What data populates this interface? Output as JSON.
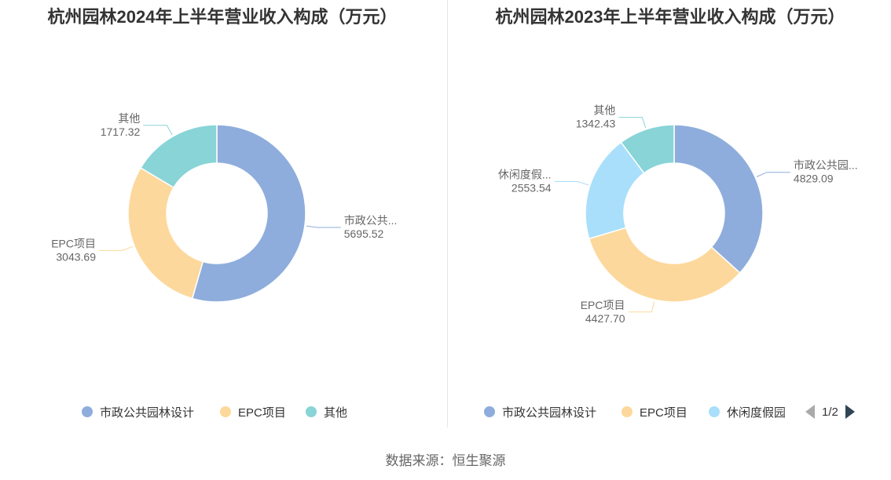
{
  "charts": [
    {
      "title": "杭州园林2024年上半年营业收入构成（万元）",
      "chart_data": {
        "type": "pie",
        "title": "杭州园林2024年上半年营业收入构成（万元）",
        "categories": [
          "市政公共园林设计",
          "EPC项目",
          "其他"
        ],
        "short_labels": [
          "市政公共...",
          "EPC项目",
          "其他"
        ],
        "values": [
          5695.52,
          3043.69,
          1717.32
        ],
        "value_labels": [
          "5695.52",
          "3043.69",
          "1717.32"
        ],
        "colors": [
          "#8eaddc",
          "#fdd89c",
          "#88d4d7"
        ],
        "legend": "bottom"
      }
    },
    {
      "title": "杭州园林2023年上半年营业收入构成（万元）",
      "chart_data": {
        "type": "pie",
        "title": "杭州园林2023年上半年营业收入构成（万元）",
        "categories": [
          "市政公共园林设计",
          "EPC项目",
          "休闲度假园",
          "其他"
        ],
        "short_labels": [
          "市政公共园...",
          "EPC项目",
          "休闲度假...",
          "其他"
        ],
        "values": [
          4829.09,
          4427.7,
          2553.54,
          1342.43
        ],
        "value_labels": [
          "4829.09",
          "4427.70",
          "2553.54",
          "1342.43"
        ],
        "colors": [
          "#8eaddc",
          "#fdd89c",
          "#a9dffa",
          "#88d4d7"
        ],
        "legend": "bottom"
      }
    }
  ],
  "legend_left": [
    "市政公共园林设计",
    "EPC项目",
    "其他"
  ],
  "legend_right": [
    "市政公共园林设计",
    "EPC项目",
    "休闲度假园"
  ],
  "pager": "1/2",
  "footer": "数据来源：恒生聚源"
}
